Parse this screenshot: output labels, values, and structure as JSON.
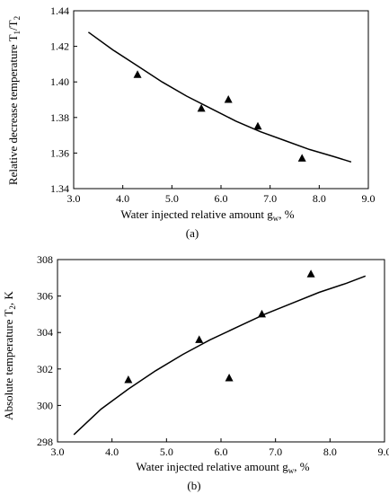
{
  "figure": {
    "panels": [
      {
        "panel_label": "(a)",
        "ylabel_main": "Relative decrease temperature T",
        "ylabel_sub1": "1",
        "ylabel_mid": "/T",
        "ylabel_sub2": "2",
        "xlabel_main": "Water injected relative  amount  g",
        "xlabel_sub": "w",
        "xlabel_tail": ", %"
      },
      {
        "panel_label": "(b)",
        "ylabel_main": "Absolute temperature T",
        "ylabel_sub1": "2",
        "ylabel_tail": ", K",
        "xlabel_main": "Water injected relative amount  g",
        "xlabel_sub": "w",
        "xlabel_tail": ", %"
      }
    ]
  },
  "chart_data": [
    {
      "type": "scatter",
      "title": "",
      "xlabel": "Water injected relative amount g_w, %",
      "ylabel": "Relative decrease temperature T1/T2",
      "xlim": [
        3.0,
        9.0
      ],
      "ylim": [
        1.34,
        1.44
      ],
      "x_ticks": [
        "3.0",
        "4.0",
        "5.0",
        "6.0",
        "7.0",
        "8.0",
        "9.0"
      ],
      "y_ticks": [
        "1.34",
        "1.36",
        "1.38",
        "1.40",
        "1.42",
        "1.44"
      ],
      "grid": false,
      "marker": "triangle",
      "points": [
        {
          "x": 4.3,
          "y": 1.404
        },
        {
          "x": 5.6,
          "y": 1.385
        },
        {
          "x": 6.15,
          "y": 1.39
        },
        {
          "x": 6.75,
          "y": 1.375
        },
        {
          "x": 7.65,
          "y": 1.357
        }
      ],
      "fit_curve": {
        "x": [
          3.3,
          3.8,
          4.3,
          4.8,
          5.3,
          5.8,
          6.3,
          6.8,
          7.3,
          7.8,
          8.3,
          8.65
        ],
        "y": [
          1.428,
          1.418,
          1.409,
          1.4,
          1.392,
          1.385,
          1.378,
          1.372,
          1.367,
          1.362,
          1.358,
          1.355
        ]
      }
    },
    {
      "type": "scatter",
      "title": "",
      "xlabel": "Water injected relative amount g_w, %",
      "ylabel": "Absolute temperature T2, K",
      "xlim": [
        3.0,
        9.0
      ],
      "ylim": [
        298,
        308
      ],
      "x_ticks": [
        "3.0",
        "4.0",
        "5.0",
        "6.0",
        "7.0",
        "8.0",
        "9.0"
      ],
      "y_ticks": [
        "298",
        "300",
        "302",
        "304",
        "306",
        "308"
      ],
      "grid": false,
      "marker": "triangle",
      "points": [
        {
          "x": 4.3,
          "y": 301.4
        },
        {
          "x": 5.6,
          "y": 303.6
        },
        {
          "x": 6.15,
          "y": 301.5
        },
        {
          "x": 6.75,
          "y": 305.0
        },
        {
          "x": 7.65,
          "y": 307.2
        }
      ],
      "fit_curve": {
        "x": [
          3.3,
          3.8,
          4.3,
          4.8,
          5.3,
          5.8,
          6.3,
          6.8,
          7.3,
          7.8,
          8.3,
          8.65
        ],
        "y": [
          298.4,
          299.8,
          300.9,
          301.9,
          302.8,
          303.6,
          304.3,
          305.0,
          305.6,
          306.2,
          306.7,
          307.1
        ]
      }
    }
  ]
}
